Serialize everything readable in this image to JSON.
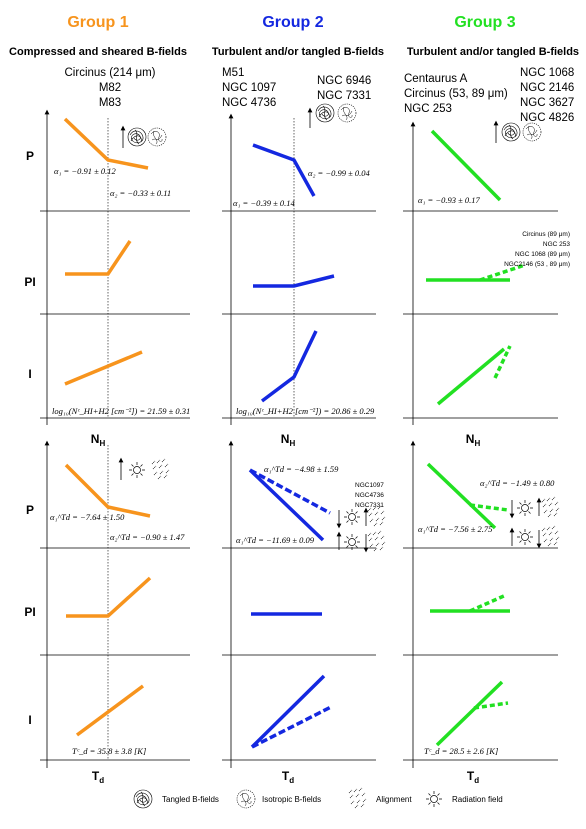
{
  "groups": [
    {
      "title": "Group 1",
      "color": "#f7941d",
      "subtitle": "Compressed and sheared B-fields",
      "galaxies": [
        "Circinus (214 μm)",
        "M82",
        "M83"
      ]
    },
    {
      "title": "Group 2",
      "color": "#1428e0",
      "subtitle": "Turbulent and/or tangled B-fields",
      "galaxies_left": [
        "M51",
        "NGC 1097",
        "NGC 4736"
      ],
      "galaxies_right": [
        "NGC 6946",
        "NGC 7331"
      ]
    },
    {
      "title": "Group 3",
      "color": "#22e022",
      "subtitle": "Turbulent and/or tangled B-fields",
      "galaxies_left": [
        "Centaurus A",
        "Circinus (53, 89 μm)",
        "NGC 253"
      ],
      "galaxies_right": [
        "NGC 1068",
        "NGC 2146",
        "NGC 3627",
        "NGC 4826"
      ]
    }
  ],
  "row_labels": [
    "P",
    "PI",
    "I"
  ],
  "x_labels": {
    "top": "N",
    "top_sub": "H",
    "bottom": "T",
    "bottom_sub": "d"
  },
  "annotations": {
    "g1_nh_a1": "α₁ = −0.91 ± 0.12",
    "g1_nh_a2": "α₂ = −0.33 ± 0.11",
    "g1_nh_break": "log₁₀(Nᶜ_HI+H2 [cm⁻²]) = 21.59 ± 0.31",
    "g2_nh_a1": "α₁ = −0.39 ± 0.14",
    "g2_nh_a2": "α₂ = −0.99 ± 0.04",
    "g2_nh_break": "log₁₀(Nᶜ_HI+H2 [cm⁻²]) = 20.86 ± 0.29",
    "g3_nh_a1": "α₁ = −0.93 ± 0.17",
    "g3_pi_list": [
      "Circinus (89 μm)",
      "NGC 253",
      "NGC 1068 (89 μm)",
      "NGC2146 (53 , 89 μm)"
    ],
    "g1_td_a1": "α₁^Td = −7.64 ± 1.50",
    "g1_td_a2": "α₂^Td = −0.90 ± 1.47",
    "g1_td_break": "Tᶜ_d = 35.8 ± 3.8 [K]",
    "g2_td_a1": "α₁^Td = −11.69 ± 0.09",
    "g2_td_a2": "α₁^Td = −4.98 ± 1.59",
    "g2_td_list": [
      "NGC1097",
      "NGC4736",
      "NGC7331"
    ],
    "g3_td_a1": "α₁^Td = −7.56 ± 2.75",
    "g3_td_a2": "α₂^Td = −1.49 ± 0.80",
    "g3_td_break": "Tᶜ_d = 28.5 ± 2.6 [K]"
  },
  "legend": [
    {
      "icon": "tangled-icon",
      "label": "Tangled B-fields"
    },
    {
      "icon": "isotropic-icon",
      "label": "Isotropic B-fields"
    },
    {
      "icon": "alignment-icon",
      "label": "Alignment"
    },
    {
      "icon": "radiation-icon",
      "label": "Radiation field"
    }
  ]
}
